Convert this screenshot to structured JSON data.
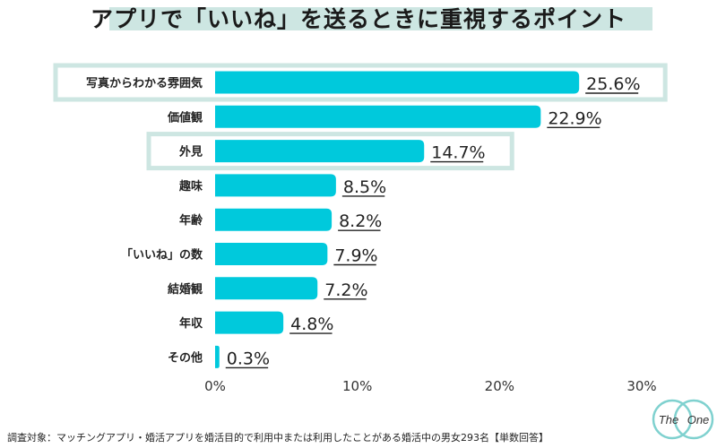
{
  "title": "アプリで「いいね」を送るときに重視するポイント",
  "footnote": "調査対象：マッチングアプリ・婚活アプリを婚活目的で利用中または利用したことがある婚活中の男女293名【単数回答】",
  "logo": {
    "left": "The",
    "right": "One"
  },
  "colors": {
    "bar": "#00c9dc",
    "highlight": "#cde6e2",
    "title_bg": "#cde6e2",
    "axis": "#444444"
  },
  "chart_data": {
    "type": "bar",
    "orientation": "horizontal",
    "title": "アプリで「いいね」を送るときに重視するポイント",
    "categories": [
      "写真からわかる雰囲気",
      "価値観",
      "外見",
      "趣味",
      "年齢",
      "「いいね」の数",
      "結婚観",
      "年収",
      "その他"
    ],
    "values": [
      25.6,
      22.9,
      14.7,
      8.5,
      8.2,
      7.9,
      7.2,
      4.8,
      0.3
    ],
    "value_labels": [
      "25.6%",
      "22.9%",
      "14.7%",
      "8.5%",
      "8.2%",
      "7.9%",
      "7.2%",
      "4.8%",
      "0.3%"
    ],
    "highlighted": [
      "写真からわかる雰囲気",
      "外見"
    ],
    "xlim": [
      0,
      30
    ],
    "xticks": [
      0,
      10,
      20,
      30
    ],
    "xtick_labels": [
      "0%",
      "10%",
      "20%",
      "30%"
    ],
    "xlabel": "",
    "ylabel": "",
    "grid": false,
    "legend": "none"
  }
}
